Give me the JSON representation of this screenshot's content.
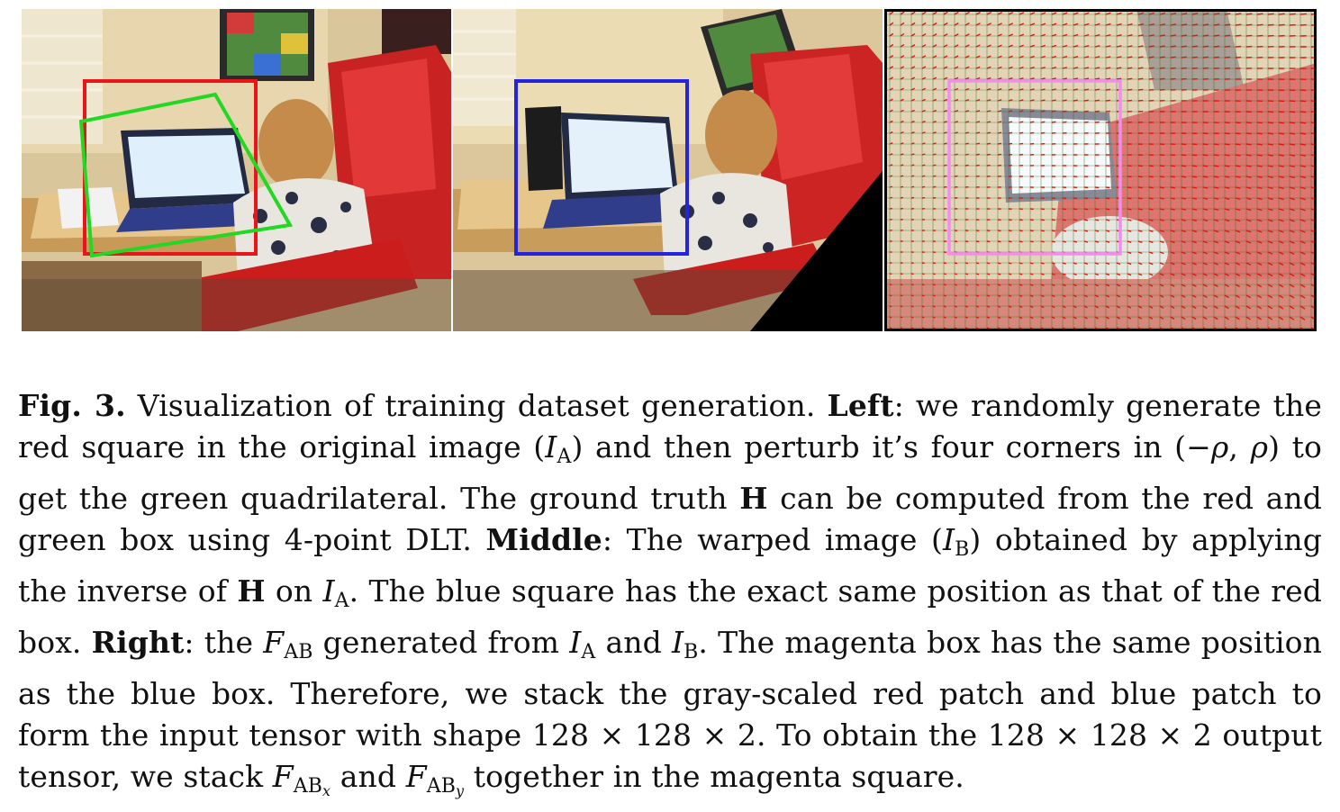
{
  "figure": {
    "panels": [
      {
        "name": "left",
        "description_icon": "photo-original"
      },
      {
        "name": "middle",
        "description_icon": "photo-warped"
      },
      {
        "name": "right",
        "description_icon": "flow-field-overlay"
      }
    ],
    "colors": {
      "red_square": "#e8151b",
      "green_quad": "#22d823",
      "blue_square": "#2424e0",
      "magenta_square": "#f28cf0",
      "flow_arrows": "#e01616",
      "flow_grid": "#1a7a1a"
    }
  },
  "caption": {
    "label": "Fig. 3.",
    "s1": " Visualization of training dataset generation. ",
    "left_label": "Left",
    "s2": ": we randomly generate the red square in the original image (",
    "ia_1_I": "I",
    "ia_1_sub": "A",
    "s3": ") and then perturb it’s four corners in (−",
    "rho1": "ρ",
    "s3b": ", ",
    "rho2": "ρ",
    "s4": ") to get the green quadrilateral. The ground truth ",
    "h1": "H",
    "s5": " can be computed from the red and green box using 4-point DLT. ",
    "middle_label": "Middle",
    "s6": ": The warped image (",
    "ib_1_I": "I",
    "ib_1_sub": "B",
    "s7": ") obtained by applying the inverse of ",
    "h2": "H",
    "s8": " on ",
    "ia_2_I": "I",
    "ia_2_sub": "A",
    "s9": ". The blue square has the exact same position as that of the red box. ",
    "right_label": "Right",
    "s10": ": the ",
    "fab_F": "F",
    "fab_sub": "AB",
    "s11": " generated from ",
    "ia_3_I": "I",
    "ia_3_sub": "A",
    "s12": " and ",
    "ib_2_I": "I",
    "ib_2_sub": "B",
    "s13": ". The magenta box has the same position as the blue box. Therefore, we stack the gray-scaled red patch and blue patch to form the input tensor with shape 128 × 128 × 2. To obtain the 128 × 128 × 2 output tensor, we stack ",
    "fabx_F": "F",
    "fabx_sub": "AB",
    "fabx_subsub": "x",
    "s14": " and ",
    "faby_F": "F",
    "faby_sub": "AB",
    "faby_subsub": "y",
    "s15": " together in the magenta square."
  }
}
